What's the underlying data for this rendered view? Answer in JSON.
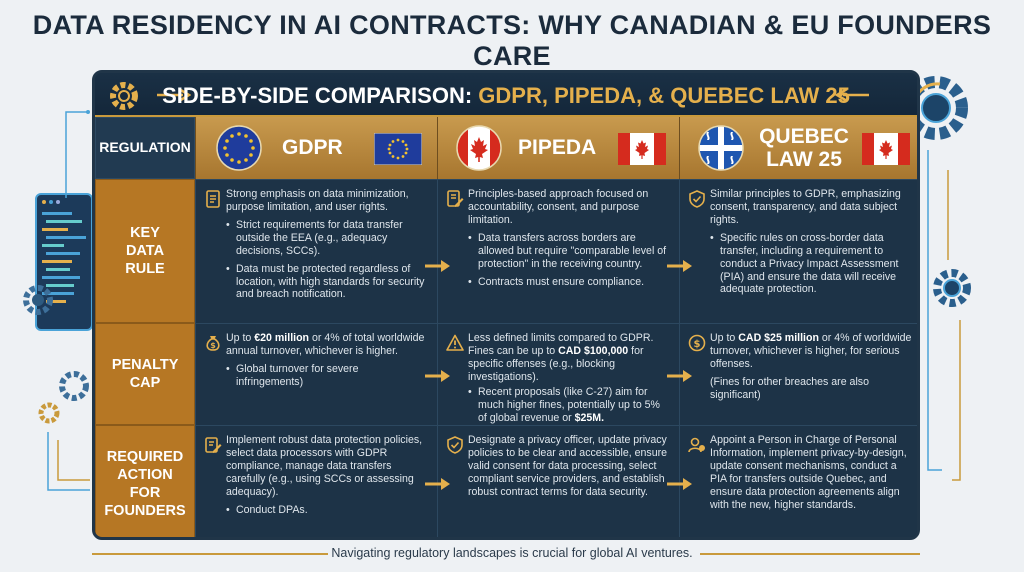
{
  "title": "DATA RESIDENCY IN AI CONTRACTS: WHY CANADIAN & EU FOUNDERS CARE",
  "banner": {
    "prefix": "SIDE-BY-SIDE COMPARISON: ",
    "highlight": "GDPR, PIPEDA, & QUEBEC LAW 25"
  },
  "row_labels": {
    "regulation": "REGULATION",
    "key_data_rule": "KEY DATA RULE",
    "penalty_cap": "PENALTY CAP",
    "required_action": "REQUIRED ACTION FOR FOUNDERS"
  },
  "regulations": [
    {
      "name": "GDPR",
      "key_rule": [
        "Strong emphasis on data minimization, purpose limitation, and user rights.",
        "Strict requirements for data transfer outside the EEA (e.g., adequacy decisions, SCCs).",
        "Data must be protected regardless of location, with high standards for security and breach notification."
      ],
      "penalty": {
        "lead_pre": "Up to ",
        "lead_bold": "€20 million",
        "lead_post": " or 4% of total worldwide annual turnover, whichever is higher.",
        "extra": "Global turnover for severe infringements)"
      },
      "action": [
        "Implement robust data protection policies, select data processors with GDPR compliance, manage data transfers carefully (e.g., using SCCs or assessing adequacy).",
        "Conduct DPAs."
      ]
    },
    {
      "name": "PIPEDA",
      "key_rule": [
        "Principles-based approach focused on accountability, consent, and purpose limitation.",
        "Data transfers across borders are allowed but require \"comparable level of protection\" in the receiving country.",
        "Contracts must ensure compliance."
      ],
      "penalty": {
        "lead_pre": "Less defined limits compared to GDPR. Fines can be up to ",
        "lead_bold": "CAD $100,000",
        "lead_post": " for specific offenses (e.g., blocking investigations).",
        "extra_pre": "Recent proposals (like C-27) aim for much higher fines, potentially up to 5% of global revenue or ",
        "extra_bold": "$25M."
      },
      "action": [
        "Designate a privacy officer, update privacy policies to be clear and accessible, ensure valid consent for data processing, select compliant service providers, and establish robust contract terms for data security."
      ]
    },
    {
      "name_line1": "QUEBEC",
      "name_line2": "LAW 25",
      "key_rule": [
        "Similar principles to GDPR, emphasizing consent, transparency, and data subject rights.",
        "Specific rules on cross-border data transfer, including a requirement to conduct a Privacy Impact Assessment (PIA) and ensure the data will receive adequate protection."
      ],
      "penalty": {
        "lead_pre": "Up to ",
        "lead_bold": "CAD $25 million",
        "lead_post": " or 4% of worldwide turnover, whichever is higher, for serious offenses.",
        "extra": "(Fines for other breaches are also significant)"
      },
      "action": [
        "Appoint a Person in Charge of Personal Information, implement privacy-by-design, update consent mechanisms, conduct a PIA for transfers outside Quebec, and ensure data protection agreements align with the new, higher standards."
      ]
    }
  ],
  "footer": "Navigating regulatory landscapes is crucial for global AI ventures.",
  "colors": {
    "panel": "#16293b",
    "accent_gold": "#e5b04c",
    "label_orange": "#b67724",
    "eu_blue": "#1f3c9c",
    "canada_red": "#d52b1e",
    "quebec_blue": "#1e56b0"
  },
  "icons": [
    "gear-icon",
    "document-icon",
    "shield-check-icon",
    "money-bag-icon",
    "warning-icon",
    "dollar-icon",
    "edit-icon",
    "shield-icon",
    "person-id-icon",
    "arrow-icon"
  ]
}
